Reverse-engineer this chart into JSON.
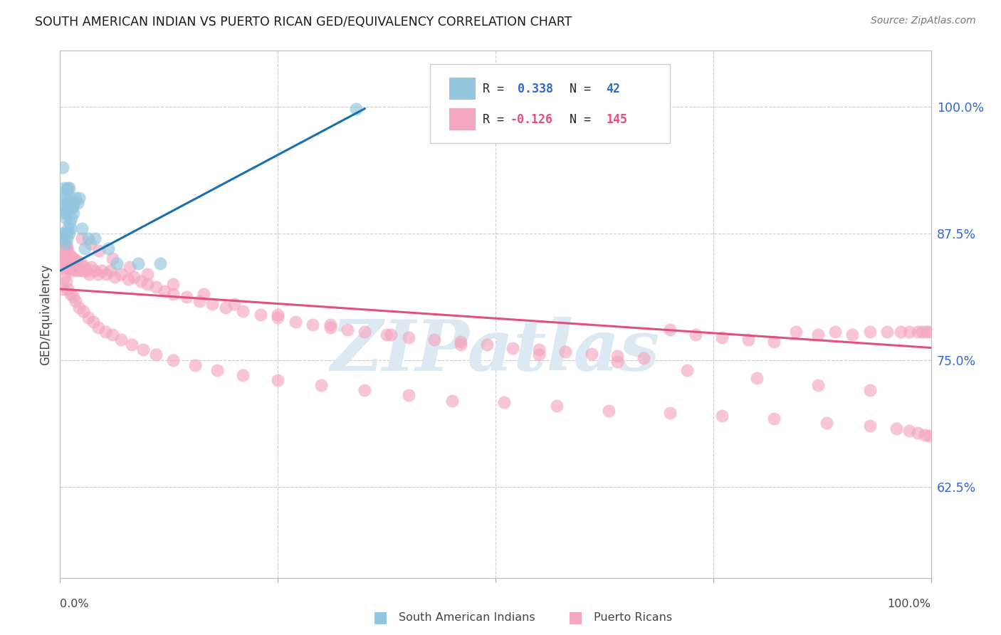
{
  "title": "SOUTH AMERICAN INDIAN VS PUERTO RICAN GED/EQUIVALENCY CORRELATION CHART",
  "source": "Source: ZipAtlas.com",
  "ylabel": "GED/Equivalency",
  "ytick_labels": [
    "62.5%",
    "75.0%",
    "87.5%",
    "100.0%"
  ],
  "ytick_values": [
    0.625,
    0.75,
    0.875,
    1.0
  ],
  "xlim": [
    0.0,
    1.0
  ],
  "ylim": [
    0.535,
    1.055
  ],
  "blue_color": "#92c5de",
  "pink_color": "#f4a6c0",
  "blue_line_color": "#1a6faf",
  "pink_line_color": "#e05080",
  "grid_color": "#cccccc",
  "title_color": "#1a1a1a",
  "source_color": "#777777",
  "axis_label_color": "#444444",
  "right_tick_color": "#3366cc",
  "legend_R_blue_color": "#3366cc",
  "legend_R_pink_color": "#e05080",
  "background_color": "#ffffff",
  "watermark_color": "#dce8f2",
  "blue_line_x": [
    0.0,
    0.35
  ],
  "blue_line_y": [
    0.838,
    0.998
  ],
  "pink_line_x": [
    0.0,
    1.0
  ],
  "pink_line_y": [
    0.82,
    0.762
  ],
  "blue_points_x": [
    0.002,
    0.003,
    0.003,
    0.004,
    0.004,
    0.005,
    0.005,
    0.005,
    0.006,
    0.006,
    0.006,
    0.007,
    0.007,
    0.008,
    0.008,
    0.008,
    0.009,
    0.009,
    0.009,
    0.01,
    0.01,
    0.01,
    0.011,
    0.011,
    0.012,
    0.012,
    0.013,
    0.014,
    0.015,
    0.016,
    0.018,
    0.02,
    0.022,
    0.025,
    0.028,
    0.032,
    0.04,
    0.055,
    0.065,
    0.09,
    0.115,
    0.34
  ],
  "blue_points_y": [
    0.875,
    0.91,
    0.94,
    0.87,
    0.9,
    0.875,
    0.895,
    0.92,
    0.865,
    0.89,
    0.91,
    0.875,
    0.9,
    0.87,
    0.895,
    0.918,
    0.88,
    0.905,
    0.92,
    0.875,
    0.9,
    0.92,
    0.885,
    0.91,
    0.88,
    0.9,
    0.89,
    0.9,
    0.895,
    0.905,
    0.91,
    0.905,
    0.91,
    0.88,
    0.86,
    0.87,
    0.87,
    0.86,
    0.845,
    0.845,
    0.845,
    0.998
  ],
  "pink_points_x": [
    0.003,
    0.004,
    0.005,
    0.005,
    0.006,
    0.006,
    0.007,
    0.007,
    0.008,
    0.008,
    0.009,
    0.009,
    0.01,
    0.011,
    0.011,
    0.012,
    0.013,
    0.013,
    0.014,
    0.015,
    0.016,
    0.017,
    0.018,
    0.019,
    0.02,
    0.022,
    0.024,
    0.026,
    0.028,
    0.03,
    0.033,
    0.036,
    0.04,
    0.044,
    0.048,
    0.053,
    0.058,
    0.063,
    0.07,
    0.078,
    0.085,
    0.093,
    0.1,
    0.11,
    0.12,
    0.13,
    0.145,
    0.16,
    0.175,
    0.19,
    0.21,
    0.23,
    0.25,
    0.27,
    0.29,
    0.31,
    0.33,
    0.35,
    0.375,
    0.4,
    0.43,
    0.46,
    0.49,
    0.52,
    0.55,
    0.58,
    0.61,
    0.64,
    0.67,
    0.7,
    0.73,
    0.76,
    0.79,
    0.82,
    0.845,
    0.87,
    0.89,
    0.91,
    0.93,
    0.95,
    0.965,
    0.975,
    0.985,
    0.99,
    0.995,
    0.998,
    0.003,
    0.005,
    0.007,
    0.009,
    0.012,
    0.015,
    0.018,
    0.022,
    0.027,
    0.032,
    0.038,
    0.044,
    0.052,
    0.06,
    0.07,
    0.082,
    0.095,
    0.11,
    0.13,
    0.155,
    0.18,
    0.21,
    0.25,
    0.3,
    0.35,
    0.4,
    0.45,
    0.51,
    0.57,
    0.63,
    0.7,
    0.76,
    0.82,
    0.88,
    0.93,
    0.96,
    0.975,
    0.985,
    0.993,
    0.998,
    0.025,
    0.035,
    0.045,
    0.06,
    0.08,
    0.1,
    0.13,
    0.165,
    0.2,
    0.25,
    0.31,
    0.38,
    0.46,
    0.55,
    0.64,
    0.72,
    0.8,
    0.87,
    0.93
  ],
  "pink_points_y": [
    0.84,
    0.855,
    0.848,
    0.865,
    0.845,
    0.858,
    0.842,
    0.86,
    0.85,
    0.862,
    0.845,
    0.858,
    0.84,
    0.852,
    0.84,
    0.848,
    0.838,
    0.852,
    0.842,
    0.85,
    0.84,
    0.845,
    0.838,
    0.848,
    0.842,
    0.838,
    0.845,
    0.838,
    0.842,
    0.838,
    0.835,
    0.842,
    0.838,
    0.835,
    0.838,
    0.835,
    0.838,
    0.832,
    0.835,
    0.83,
    0.832,
    0.828,
    0.825,
    0.822,
    0.818,
    0.815,
    0.812,
    0.808,
    0.805,
    0.802,
    0.798,
    0.795,
    0.792,
    0.788,
    0.785,
    0.782,
    0.78,
    0.778,
    0.775,
    0.772,
    0.77,
    0.768,
    0.765,
    0.762,
    0.76,
    0.758,
    0.756,
    0.754,
    0.752,
    0.78,
    0.775,
    0.772,
    0.77,
    0.768,
    0.778,
    0.775,
    0.778,
    0.775,
    0.778,
    0.778,
    0.778,
    0.778,
    0.778,
    0.778,
    0.778,
    0.778,
    0.82,
    0.832,
    0.828,
    0.82,
    0.815,
    0.812,
    0.808,
    0.802,
    0.798,
    0.792,
    0.788,
    0.782,
    0.778,
    0.775,
    0.77,
    0.765,
    0.76,
    0.755,
    0.75,
    0.745,
    0.74,
    0.735,
    0.73,
    0.725,
    0.72,
    0.715,
    0.71,
    0.708,
    0.705,
    0.7,
    0.698,
    0.695,
    0.692,
    0.688,
    0.685,
    0.682,
    0.68,
    0.678,
    0.676,
    0.675,
    0.87,
    0.865,
    0.858,
    0.85,
    0.842,
    0.835,
    0.825,
    0.815,
    0.805,
    0.795,
    0.785,
    0.775,
    0.765,
    0.755,
    0.748,
    0.74,
    0.732,
    0.725,
    0.72
  ]
}
